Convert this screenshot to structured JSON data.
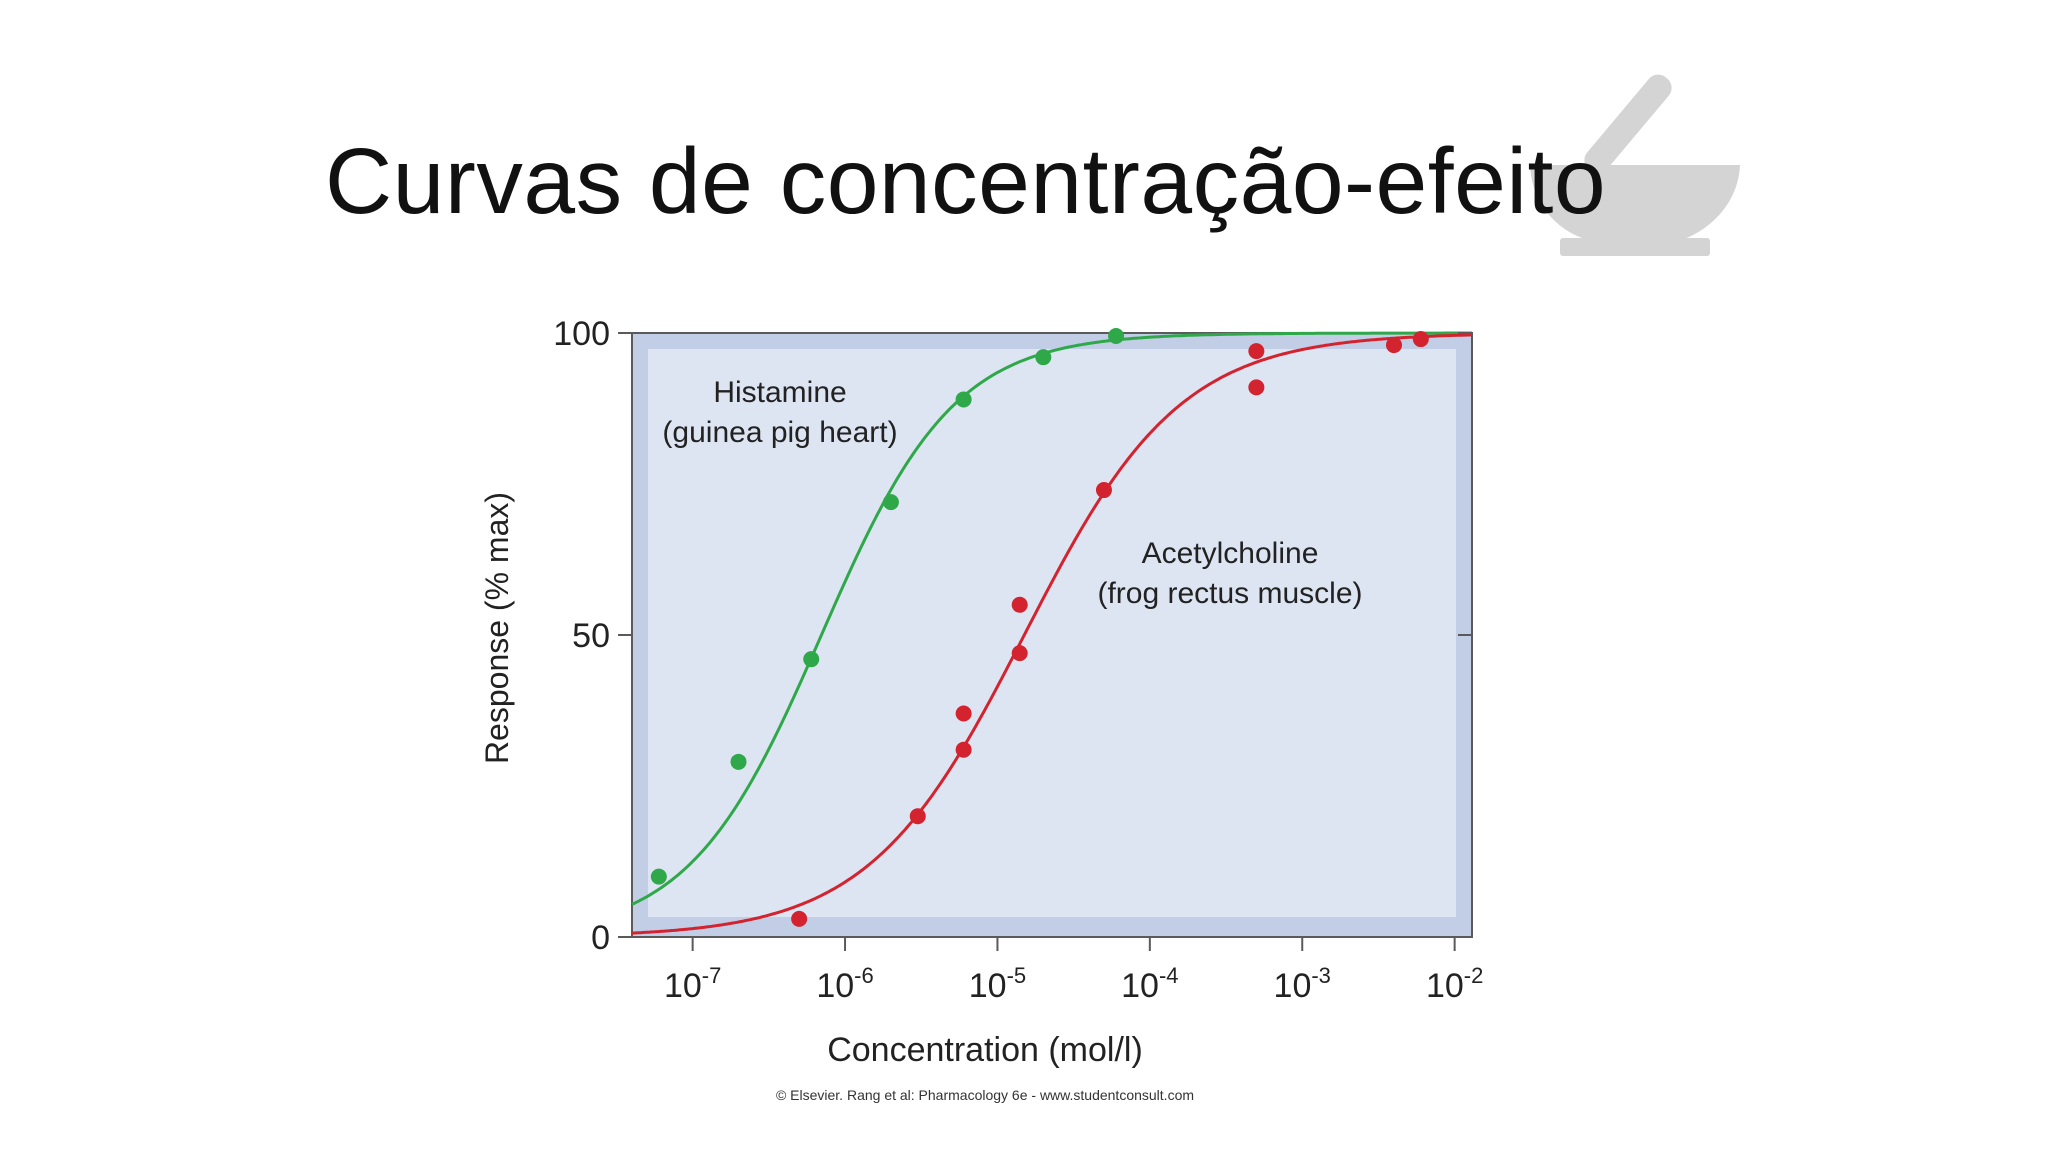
{
  "slide": {
    "title": "Curvas de concentração-efeito",
    "decoration_icon": "mortar-and-pestle-icon"
  },
  "chart_data": {
    "type": "scatter",
    "title": "",
    "xlabel": "Concentration (mol/l)",
    "ylabel": "Response (% max)",
    "x_scale": "log",
    "xlim": [
      4e-08,
      0.013
    ],
    "ylim": [
      0,
      100
    ],
    "x_ticks": [
      {
        "value": 1e-07,
        "base": "10",
        "exp": "-7"
      },
      {
        "value": 1e-06,
        "base": "10",
        "exp": "-6"
      },
      {
        "value": 1e-05,
        "base": "10",
        "exp": "-5"
      },
      {
        "value": 0.0001,
        "base": "10",
        "exp": "-4"
      },
      {
        "value": 0.001,
        "base": "10",
        "exp": "-3"
      },
      {
        "value": 0.01,
        "base": "10",
        "exp": "-2"
      }
    ],
    "y_ticks": [
      {
        "value": 0,
        "label": "0"
      },
      {
        "value": 50,
        "label": "50"
      },
      {
        "value": 100,
        "label": "100"
      }
    ],
    "grid": false,
    "background_color": "#dde4f2",
    "frame_color": "#c2cee6",
    "series": [
      {
        "name_line1": "Histamine",
        "name_line2": "(guinea pig heart)",
        "color": "#2fa84a",
        "points": [
          {
            "x": 6e-08,
            "y": 10
          },
          {
            "x": 2e-07,
            "y": 29
          },
          {
            "x": 6e-07,
            "y": 46
          },
          {
            "x": 2e-06,
            "y": 72
          },
          {
            "x": 6e-06,
            "y": 89
          },
          {
            "x": 2e-05,
            "y": 96
          },
          {
            "x": 6e-05,
            "y": 99.5
          }
        ],
        "fit": {
          "ec50": 7e-07,
          "hill": 1.0
        }
      },
      {
        "name_line1": "Acetylcholine",
        "name_line2": "(frog rectus muscle)",
        "color": "#d2232e",
        "points": [
          {
            "x": 5e-07,
            "y": 3
          },
          {
            "x": 3e-06,
            "y": 20
          },
          {
            "x": 6e-06,
            "y": 31
          },
          {
            "x": 6e-06,
            "y": 37
          },
          {
            "x": 1.4e-05,
            "y": 47
          },
          {
            "x": 1.4e-05,
            "y": 55
          },
          {
            "x": 5e-05,
            "y": 74
          },
          {
            "x": 0.0005,
            "y": 91
          },
          {
            "x": 0.0005,
            "y": 97
          },
          {
            "x": 0.004,
            "y": 98
          },
          {
            "x": 0.006,
            "y": 99
          }
        ],
        "fit": {
          "ec50": 1.5e-05,
          "hill": 0.85
        }
      }
    ],
    "credit": "© Elsevier. Rang et al: Pharmacology 6e - www.studentconsult.com"
  }
}
